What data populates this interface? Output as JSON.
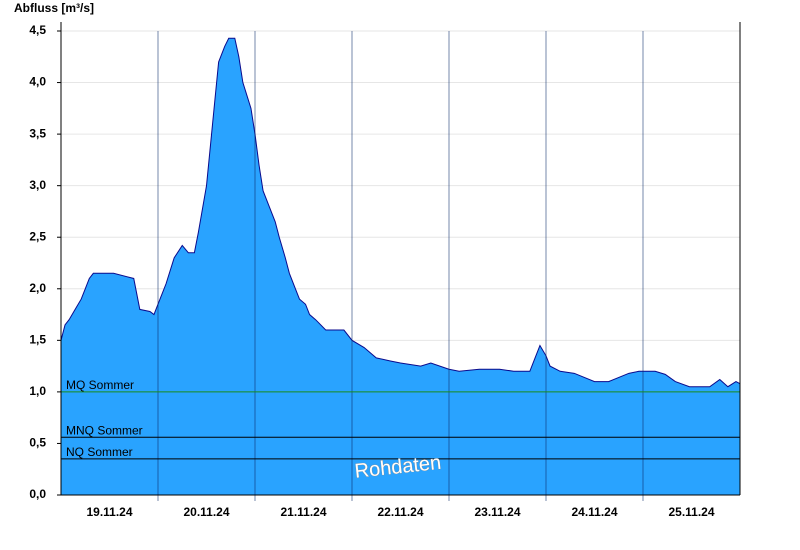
{
  "chart_data": {
    "type": "area",
    "ylabel": "Abfluss [m³/s]",
    "annotation": "Rohdaten",
    "color": "#29a3ff",
    "line_color": "#0a0a8c",
    "xlim": [
      0,
      168
    ],
    "xticks": [
      {
        "value": 12,
        "label": "19.11.24"
      },
      {
        "value": 36,
        "label": "20.11.24"
      },
      {
        "value": 60,
        "label": "21.11.24"
      },
      {
        "value": 84,
        "label": "22.11.24"
      },
      {
        "value": 108,
        "label": "23.11.24"
      },
      {
        "value": 132,
        "label": "24.11.24"
      },
      {
        "value": 156,
        "label": "25.11.24"
      }
    ],
    "xgrid": [
      24,
      48,
      72,
      96,
      120,
      144
    ],
    "ylim": [
      0,
      4.5
    ],
    "yticks": [
      {
        "value": 0,
        "label": "0,0"
      },
      {
        "value": 0.5,
        "label": "0,5"
      },
      {
        "value": 1,
        "label": "1,0"
      },
      {
        "value": 1.5,
        "label": "1,5"
      },
      {
        "value": 2,
        "label": "2,0"
      },
      {
        "value": 2.5,
        "label": "2,5"
      },
      {
        "value": 3,
        "label": "3,0"
      },
      {
        "value": 3.5,
        "label": "3,5"
      },
      {
        "value": 4,
        "label": "4,0"
      },
      {
        "value": 4.5,
        "label": "4,5"
      }
    ],
    "grid": true,
    "x": [
      0,
      1,
      2,
      3.5,
      5,
      6,
      7,
      8,
      9,
      13,
      18,
      19.5,
      22,
      23,
      24,
      26,
      28,
      30,
      31.5,
      33,
      34,
      36,
      37,
      38,
      39,
      40.5,
      41.5,
      43,
      44,
      45,
      47,
      48,
      49,
      50,
      51.5,
      53,
      54,
      55.5,
      56.5,
      58,
      59,
      60.5,
      61.5,
      63,
      65.5,
      70,
      72,
      75,
      78,
      81.5,
      84,
      89,
      91.5,
      96,
      98.5,
      103.5,
      108.5,
      112,
      116,
      117,
      118.5,
      120,
      121,
      123.5,
      127,
      132,
      135.5,
      140.5,
      143,
      147,
      149.5,
      152,
      155.5,
      160.5,
      163,
      165,
      167,
      168
    ],
    "values": [
      1.5,
      1.65,
      1.7,
      1.8,
      1.9,
      2.0,
      2.1,
      2.15,
      2.15,
      2.15,
      2.1,
      1.8,
      1.78,
      1.75,
      1.85,
      2.05,
      2.3,
      2.42,
      2.35,
      2.35,
      2.55,
      3.0,
      3.4,
      3.8,
      4.2,
      4.35,
      4.43,
      4.43,
      4.25,
      4.0,
      3.75,
      3.5,
      3.2,
      2.95,
      2.8,
      2.65,
      2.5,
      2.3,
      2.15,
      2.0,
      1.9,
      1.85,
      1.75,
      1.7,
      1.6,
      1.6,
      1.5,
      1.43,
      1.33,
      1.3,
      1.28,
      1.25,
      1.28,
      1.22,
      1.2,
      1.22,
      1.22,
      1.2,
      1.2,
      1.3,
      1.45,
      1.35,
      1.25,
      1.2,
      1.18,
      1.1,
      1.1,
      1.18,
      1.2,
      1.2,
      1.17,
      1.1,
      1.05,
      1.05,
      1.12,
      1.05,
      1.1,
      1.08
    ],
    "reference_lines": [
      {
        "name": "MQ Sommer",
        "value": 1.0,
        "color": "#1a8a1a"
      },
      {
        "name": "MNQ Sommer",
        "value": 0.56,
        "color": "#000000"
      },
      {
        "name": "NQ Sommer",
        "value": 0.35,
        "color": "#000000"
      }
    ]
  }
}
